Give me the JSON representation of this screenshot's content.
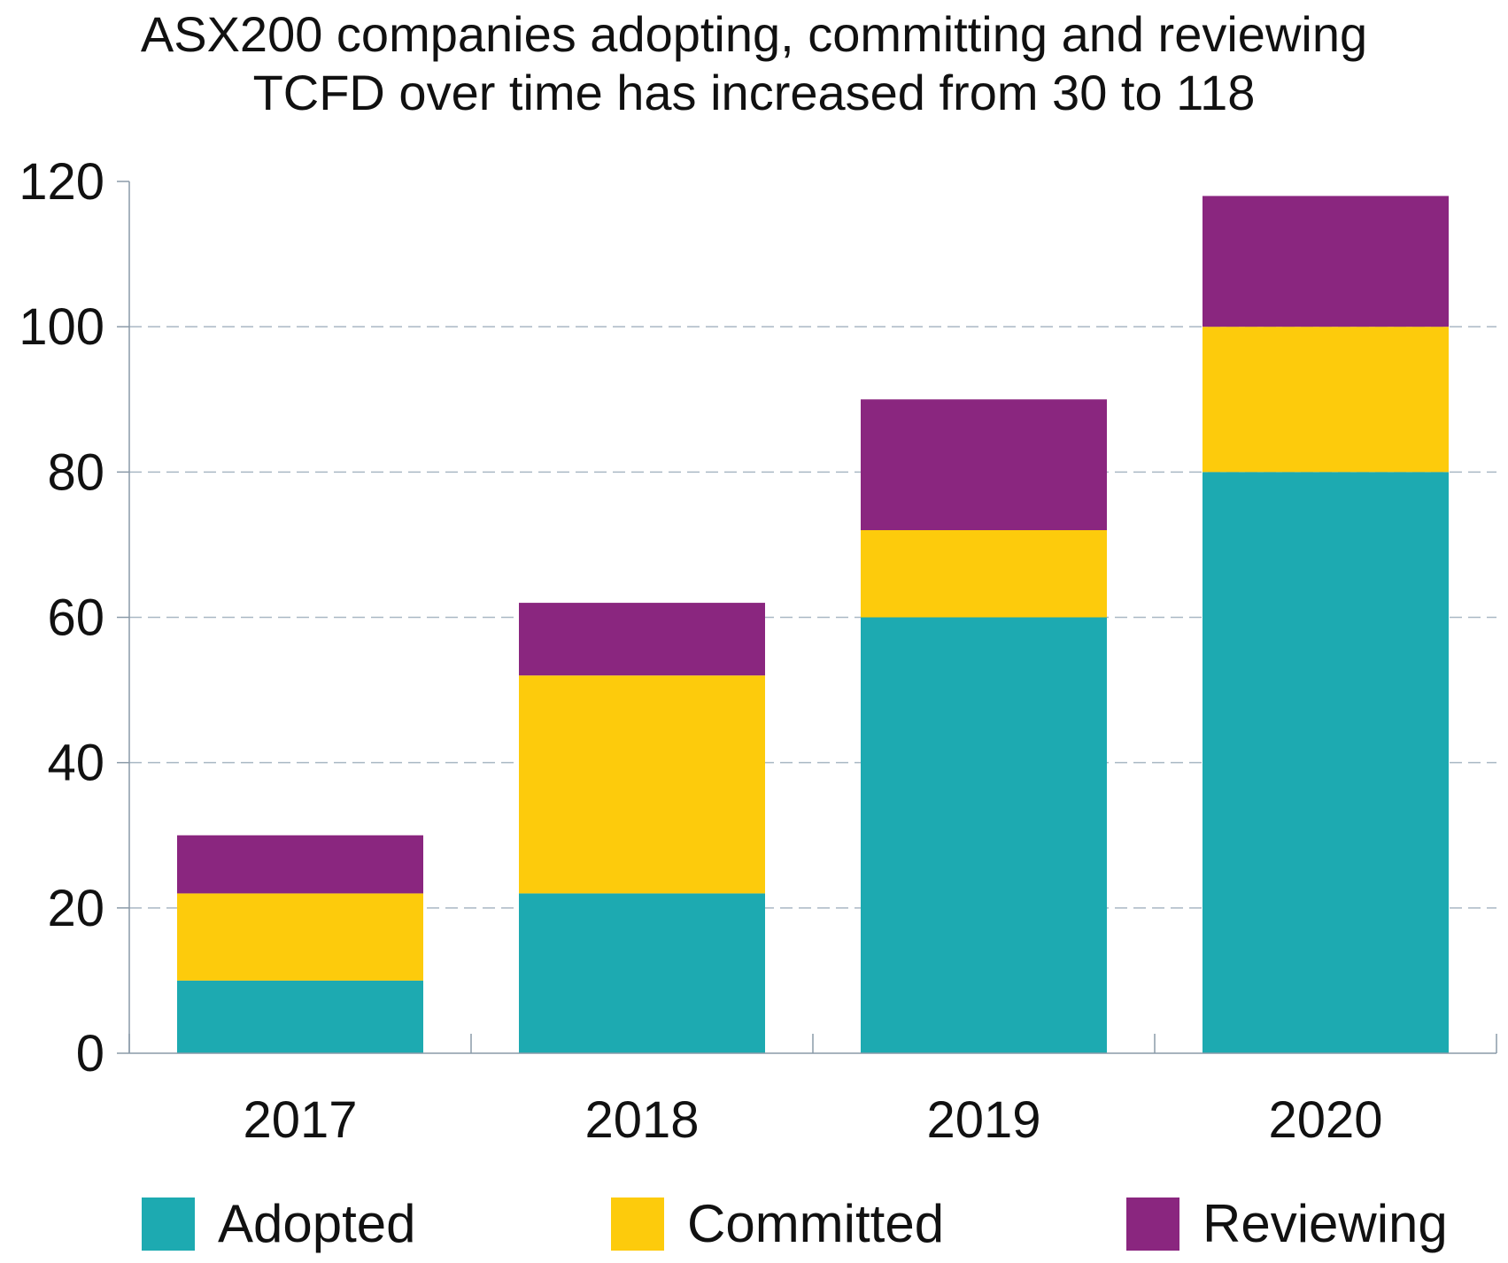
{
  "title_lines": [
    "ASX200 companies adopting, committing and reviewing",
    "TCFD over time has increased from 30 to 118"
  ],
  "chart_data": {
    "type": "bar",
    "stacked": true,
    "title": "ASX200 companies adopting, committing and reviewing TCFD over time has increased from 30 to 118",
    "categories": [
      "2017",
      "2018",
      "2019",
      "2020"
    ],
    "series": [
      {
        "name": "Adopted",
        "color": "#1DAAB1",
        "values": [
          10,
          22,
          60,
          80
        ]
      },
      {
        "name": "Committed",
        "color": "#FDCB0C",
        "values": [
          12,
          30,
          12,
          20
        ]
      },
      {
        "name": "Reviewing",
        "color": "#8A267F",
        "values": [
          8,
          10,
          18,
          18
        ]
      }
    ],
    "xlabel": "",
    "ylabel": "",
    "ylim": [
      0,
      120
    ],
    "yticks": [
      0,
      20,
      40,
      60,
      80,
      100,
      120
    ],
    "grid": "horizontal dashed",
    "legend": "bottom"
  }
}
